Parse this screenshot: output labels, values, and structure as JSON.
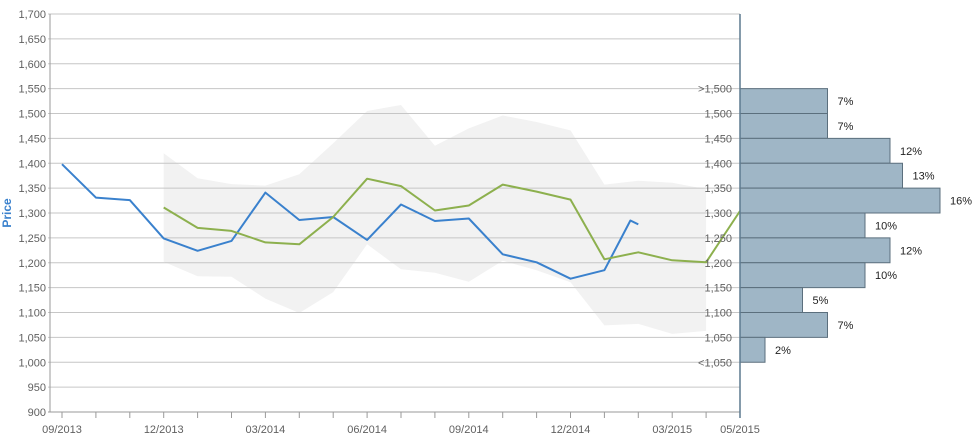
{
  "chart_data": {
    "type": "line",
    "ylabel": "Price",
    "ylim": [
      900,
      1700
    ],
    "yticks": [
      900,
      950,
      1000,
      1050,
      1100,
      1150,
      1200,
      1250,
      1300,
      1350,
      1400,
      1450,
      1500,
      1550,
      1600,
      1650,
      1700
    ],
    "ytick_labels": [
      "900",
      "950",
      "1,000",
      "1,050",
      "1,100",
      "1,150",
      "1,200",
      "1,250",
      "1,300",
      "1,350",
      "1,400",
      "1,450",
      "1,500",
      "1,550",
      "1,600",
      "1,650",
      "1,700"
    ],
    "xlim": [
      "2013-09",
      "2015-05"
    ],
    "xticks": [
      "2013-09",
      "2013-10",
      "2013-11",
      "2013-12",
      "2014-01",
      "2014-02",
      "2014-03",
      "2014-04",
      "2014-05",
      "2014-06",
      "2014-07",
      "2014-08",
      "2014-09",
      "2014-10",
      "2014-11",
      "2014-12",
      "2015-01",
      "2015-02",
      "2015-03",
      "2015-04",
      "2015-05"
    ],
    "xtick_labels": [
      {
        "at": "2013-09",
        "text": "09/2013"
      },
      {
        "at": "2013-12",
        "text": "12/2013"
      },
      {
        "at": "2014-03",
        "text": "03/2014"
      },
      {
        "at": "2014-06",
        "text": "06/2014"
      },
      {
        "at": "2014-09",
        "text": "09/2014"
      },
      {
        "at": "2014-12",
        "text": "12/2014"
      },
      {
        "at": "2015-03",
        "text": "03/2015"
      },
      {
        "at": "2015-05",
        "text": "05/2015"
      }
    ],
    "grid": true,
    "band": {
      "upper": [
        {
          "x": "2013-12",
          "y": 1420
        },
        {
          "x": "2014-01",
          "y": 1370
        },
        {
          "x": "2014-02",
          "y": 1358
        },
        {
          "x": "2014-03",
          "y": 1355
        },
        {
          "x": "2014-04",
          "y": 1378
        },
        {
          "x": "2014-05",
          "y": 1440
        },
        {
          "x": "2014-06",
          "y": 1505
        },
        {
          "x": "2014-07",
          "y": 1517
        },
        {
          "x": "2014-08",
          "y": 1435
        },
        {
          "x": "2014-09",
          "y": 1470
        },
        {
          "x": "2014-10",
          "y": 1496
        },
        {
          "x": "2014-11",
          "y": 1483
        },
        {
          "x": "2014-12",
          "y": 1466
        },
        {
          "x": "2015-01",
          "y": 1357
        },
        {
          "x": "2015-02",
          "y": 1365
        },
        {
          "x": "2015-03",
          "y": 1361
        },
        {
          "x": "2015-04",
          "y": 1348
        }
      ],
      "lower": [
        {
          "x": "2013-12",
          "y": 1202
        },
        {
          "x": "2014-01",
          "y": 1173
        },
        {
          "x": "2014-02",
          "y": 1172
        },
        {
          "x": "2014-03",
          "y": 1128
        },
        {
          "x": "2014-04",
          "y": 1099
        },
        {
          "x": "2014-05",
          "y": 1141
        },
        {
          "x": "2014-06",
          "y": 1237
        },
        {
          "x": "2014-07",
          "y": 1187
        },
        {
          "x": "2014-08",
          "y": 1180
        },
        {
          "x": "2014-09",
          "y": 1162
        },
        {
          "x": "2014-10",
          "y": 1204
        },
        {
          "x": "2014-11",
          "y": 1185
        },
        {
          "x": "2014-12",
          "y": 1161
        },
        {
          "x": "2015-01",
          "y": 1074
        },
        {
          "x": "2015-02",
          "y": 1077
        },
        {
          "x": "2015-03",
          "y": 1057
        },
        {
          "x": "2015-04",
          "y": 1063
        }
      ]
    },
    "series": [
      {
        "color": "#3a81cd",
        "points": [
          {
            "x": "2013-09",
            "y": 1398
          },
          {
            "x": "2013-10",
            "y": 1331
          },
          {
            "x": "2013-11",
            "y": 1326
          },
          {
            "x": "2013-12",
            "y": 1249
          },
          {
            "x": "2014-01",
            "y": 1224
          },
          {
            "x": "2014-02",
            "y": 1244
          },
          {
            "x": "2014-03",
            "y": 1341
          },
          {
            "x": "2014-04",
            "y": 1286
          },
          {
            "x": "2014-05",
            "y": 1292
          },
          {
            "x": "2014-06",
            "y": 1246
          },
          {
            "x": "2014-07",
            "y": 1317
          },
          {
            "x": "2014-08",
            "y": 1284
          },
          {
            "x": "2014-09",
            "y": 1289
          },
          {
            "x": "2014-10",
            "y": 1217
          },
          {
            "x": "2014-11",
            "y": 1201
          },
          {
            "x": "2014-12",
            "y": 1168
          },
          {
            "x": "2015-01",
            "y": 1185
          },
          {
            "x": "2015-01-24",
            "y": 1285
          },
          {
            "x": "2015-02",
            "y": 1277
          }
        ]
      },
      {
        "color": "#8db04e",
        "points": [
          {
            "x": "2013-12",
            "y": 1311
          },
          {
            "x": "2014-01",
            "y": 1270
          },
          {
            "x": "2014-02",
            "y": 1264
          },
          {
            "x": "2014-03",
            "y": 1241
          },
          {
            "x": "2014-04",
            "y": 1237
          },
          {
            "x": "2014-05",
            "y": 1292
          },
          {
            "x": "2014-06",
            "y": 1369
          },
          {
            "x": "2014-07",
            "y": 1354
          },
          {
            "x": "2014-08",
            "y": 1305
          },
          {
            "x": "2014-09",
            "y": 1315
          },
          {
            "x": "2014-10",
            "y": 1357
          },
          {
            "x": "2014-11",
            "y": 1343
          },
          {
            "x": "2014-12",
            "y": 1327
          },
          {
            "x": "2015-01",
            "y": 1207
          },
          {
            "x": "2015-02",
            "y": 1221
          },
          {
            "x": "2015-03",
            "y": 1205
          },
          {
            "x": "2015-04",
            "y": 1201
          },
          {
            "x": "2015-05",
            "y": 1304
          }
        ]
      }
    ],
    "distribution": {
      "type": "bar",
      "orientation": "horizontal",
      "bins": [
        {
          "label": ">1,500",
          "low": 1500,
          "high": 1550,
          "value": 7,
          "value_label": "7%"
        },
        {
          "label": "1,500",
          "low": 1450,
          "high": 1500,
          "value": 7,
          "value_label": "7%"
        },
        {
          "label": "1,450",
          "low": 1400,
          "high": 1450,
          "value": 12,
          "value_label": "12%"
        },
        {
          "label": "1,400",
          "low": 1350,
          "high": 1400,
          "value": 13,
          "value_label": "13%"
        },
        {
          "label": "1,350",
          "low": 1300,
          "high": 1350,
          "value": 16,
          "value_label": "16%"
        },
        {
          "label": "1,300",
          "low": 1250,
          "high": 1300,
          "value": 10,
          "value_label": "10%"
        },
        {
          "label": "1,250",
          "low": 1200,
          "high": 1250,
          "value": 12,
          "value_label": "12%"
        },
        {
          "label": "1,200",
          "low": 1150,
          "high": 1200,
          "value": 10,
          "value_label": "10%"
        },
        {
          "label": "1,150",
          "low": 1100,
          "high": 1150,
          "value": 5,
          "value_label": "5%"
        },
        {
          "label": "1,100",
          "low": 1050,
          "high": 1100,
          "value": 7,
          "value_label": "7%"
        },
        {
          "label": "1,050",
          "low": 1000,
          "high": 1050,
          "value": 2,
          "value_label": "2%"
        },
        {
          "label": "<1,050",
          "low": 1000,
          "high": 1000,
          "value": null,
          "value_label": ""
        }
      ]
    },
    "colors": {
      "grid": "#c6c6c6",
      "axis": "#9a9a9a",
      "band": "#f2f2f2",
      "bar_fill": "#9fb6c6",
      "bar_stroke": "#5b6f7d",
      "tick_text": "#606060",
      "ylabel": "#3a81cd",
      "divider": "#5d7a8f"
    }
  }
}
